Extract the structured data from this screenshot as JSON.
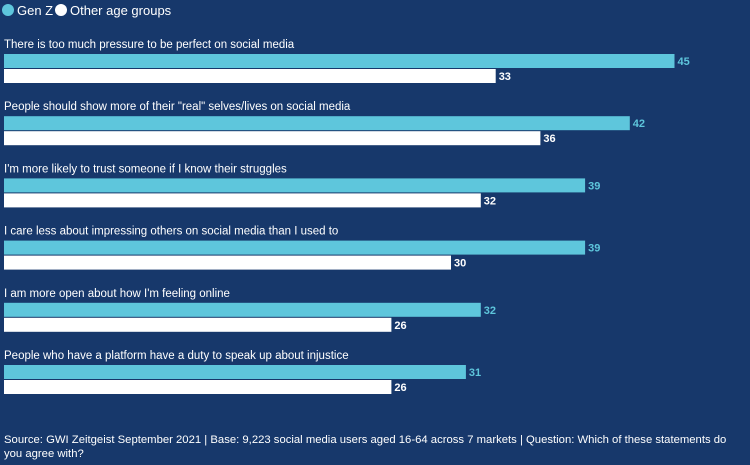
{
  "chart_data": {
    "type": "bar",
    "orientation": "horizontal",
    "categories": [
      "There is too much pressure to be perfect on social media",
      "People should show more of their \"real\" selves/lives on social media",
      "I'm more likely to trust someone if I know their struggles",
      "I care less about impressing others on social media than I used to",
      "I am more open about how I'm feeling online",
      "People who have a platform have a duty to speak up about injustice"
    ],
    "series": [
      {
        "name": "Gen Z",
        "color": "#5ec6dc",
        "values": [
          45,
          42,
          39,
          39,
          32,
          31
        ]
      },
      {
        "name": "Other age groups",
        "color": "#ffffff",
        "values": [
          33,
          36,
          32,
          30,
          26,
          26
        ]
      }
    ],
    "xlim": [
      0,
      50
    ],
    "legend_position": "top-left",
    "grid": false
  },
  "colors": {
    "background": "#17386b",
    "gen_z": "#5ec6dc",
    "others": "#ffffff"
  },
  "source": "Source: GWI Zeitgeist September 2021 | Base: 9,223 social media users aged 16-64 across 7 markets | Question: Which of these statements do you agree with?"
}
